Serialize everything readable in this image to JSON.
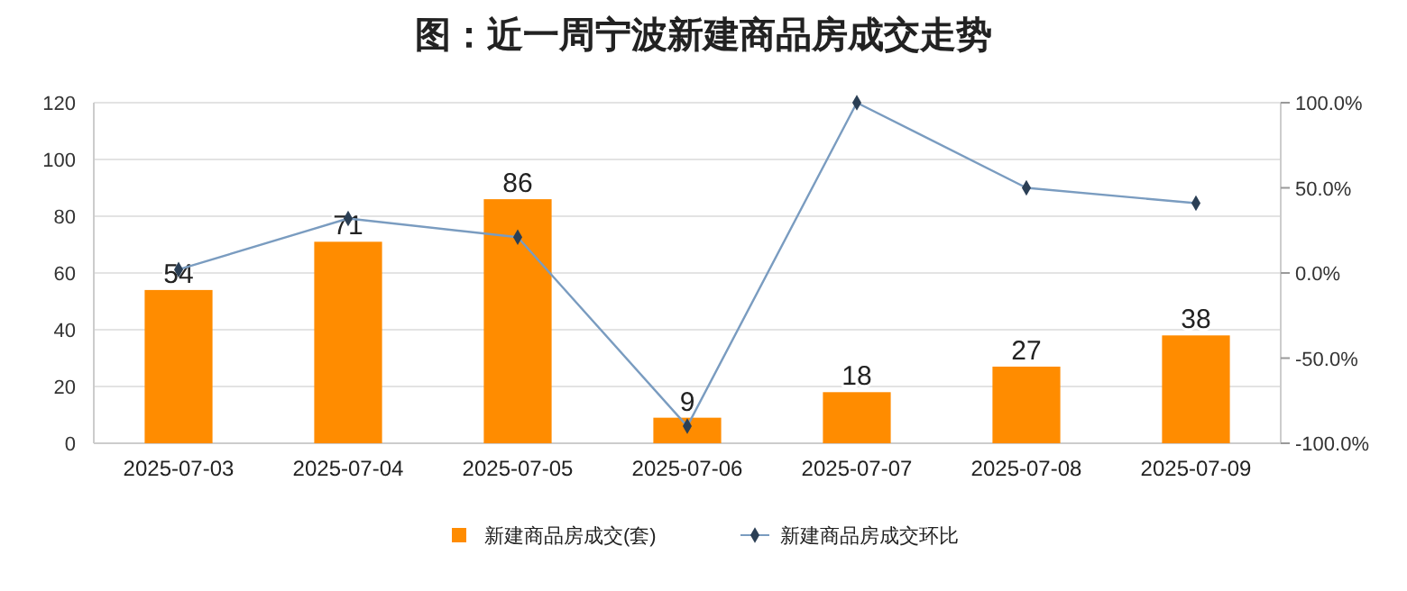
{
  "chart_data": {
    "type": "bar",
    "title": "图：近一周宁波新建商品房成交走势",
    "categories": [
      "2025-07-03",
      "2025-07-04",
      "2025-07-05",
      "2025-07-06",
      "2025-07-07",
      "2025-07-08",
      "2025-07-09"
    ],
    "series": [
      {
        "name": "新建商品房成交(套)",
        "color": "#ff8c00",
        "values": [
          54,
          71,
          86,
          9,
          18,
          27,
          38
        ],
        "value_labels": [
          "54",
          "71",
          "86",
          "9",
          "18",
          "27",
          "38"
        ]
      },
      {
        "name": "新建商品房成交环比",
        "type": "line",
        "axis": "y2",
        "color": "#7a9cc0",
        "marker": "diamond",
        "values": [
          2,
          32,
          21,
          -90,
          100,
          50,
          41
        ]
      }
    ],
    "ylim": [
      0,
      120
    ],
    "yticks": [
      0,
      20,
      40,
      60,
      80,
      100,
      120
    ],
    "y2lim": [
      -100,
      100
    ],
    "y2ticks": [
      {
        "value": -100,
        "label": "-100.0%"
      },
      {
        "value": -50,
        "label": "-50.0%"
      },
      {
        "value": 0,
        "label": "0.0%"
      },
      {
        "value": 50,
        "label": "50.0%"
      },
      {
        "value": 100,
        "label": "100.0%"
      }
    ],
    "grid": "y",
    "legend": "bottom"
  }
}
